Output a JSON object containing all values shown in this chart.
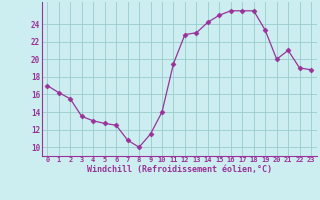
{
  "hours": [
    0,
    1,
    2,
    3,
    4,
    5,
    6,
    7,
    8,
    9,
    10,
    11,
    12,
    13,
    14,
    15,
    16,
    17,
    18,
    19,
    20,
    21,
    22,
    23
  ],
  "values": [
    17.0,
    16.2,
    15.5,
    13.5,
    13.0,
    12.7,
    12.5,
    10.8,
    10.0,
    11.5,
    14.0,
    19.5,
    22.8,
    23.0,
    24.2,
    25.0,
    25.5,
    25.5,
    25.5,
    23.3,
    20.0,
    21.0,
    19.0,
    18.8
  ],
  "line_color": "#993399",
  "marker": "D",
  "marker_size": 2.5,
  "bg_color": "#cceef0",
  "grid_color": "#99cccc",
  "ylabel_ticks": [
    10,
    12,
    14,
    16,
    18,
    20,
    22,
    24
  ],
  "ylim": [
    9.0,
    26.5
  ],
  "xlim": [
    -0.5,
    23.5
  ],
  "xlabel": "Windchill (Refroidissement éolien,°C)",
  "xlabel_color": "#993399",
  "tick_color": "#993399",
  "spine_color": "#993399",
  "figsize": [
    3.2,
    2.0
  ],
  "dpi": 100
}
